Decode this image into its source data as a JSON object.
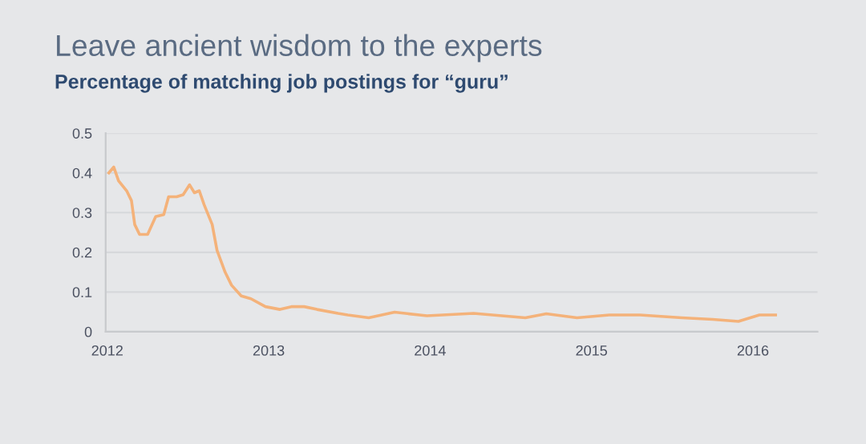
{
  "chart_data": {
    "type": "line",
    "title": "Leave ancient wisdom to the experts",
    "subtitle": "Percentage of matching job postings for “guru”",
    "x": [
      2012.01,
      2012.04,
      2012.07,
      2012.12,
      2012.15,
      2012.17,
      2012.2,
      2012.25,
      2012.3,
      2012.35,
      2012.38,
      2012.43,
      2012.47,
      2012.51,
      2012.54,
      2012.57,
      2012.6,
      2012.65,
      2012.68,
      2012.73,
      2012.77,
      2012.83,
      2012.89,
      2012.98,
      2013.07,
      2013.14,
      2013.22,
      2013.3,
      2013.43,
      2013.49,
      2013.62,
      2013.78,
      2013.98,
      2014.27,
      2014.59,
      2014.72,
      2014.91,
      2015.11,
      2015.3,
      2015.56,
      2015.75,
      2015.91,
      2016.04,
      2016.14
    ],
    "series": [
      {
        "color": "#f4b27a",
        "values": [
          0.4,
          0.415,
          0.38,
          0.355,
          0.33,
          0.27,
          0.245,
          0.245,
          0.29,
          0.295,
          0.34,
          0.34,
          0.345,
          0.37,
          0.35,
          0.355,
          0.32,
          0.27,
          0.205,
          0.15,
          0.117,
          0.09,
          0.083,
          0.063,
          0.056,
          0.063,
          0.063,
          0.056,
          0.046,
          0.042,
          0.035,
          0.049,
          0.04,
          0.046,
          0.035,
          0.045,
          0.035,
          0.042,
          0.042,
          0.035,
          0.031,
          0.026,
          0.042,
          0.042
        ]
      }
    ],
    "xlim": [
      2011.99,
      2016.4
    ],
    "xticks": [
      2012,
      2013,
      2014,
      2015,
      2016
    ],
    "ylim": [
      0,
      0.5
    ],
    "yticks": [
      {
        "value": 0,
        "label": "0"
      },
      0.1,
      0.2,
      0.3,
      0.4,
      0.5
    ],
    "grid": "y",
    "legend": false,
    "marker": "none",
    "line_style": "solid"
  }
}
